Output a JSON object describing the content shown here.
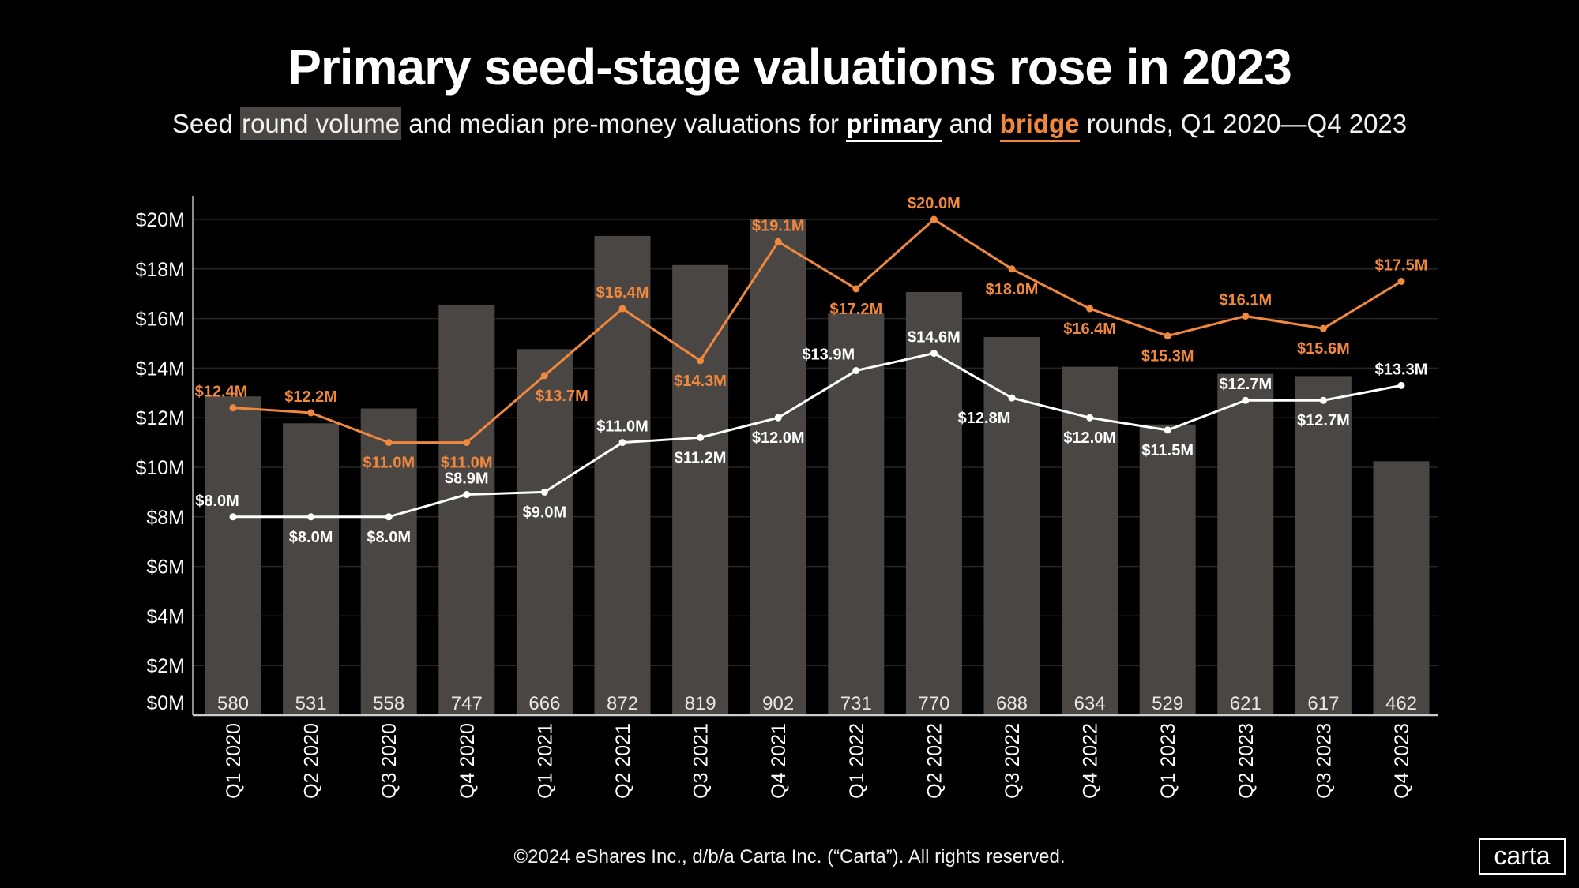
{
  "title": "Primary seed-stage valuations rose in 2023",
  "subtitle": {
    "part1": "Seed",
    "highlight": "round volume",
    "part2": "and median pre-money valuations for",
    "primary": "primary",
    "part3": "and",
    "bridge": "bridge",
    "part4": "rounds, Q1 2020—Q4 2023"
  },
  "footer": "©2024 eShares Inc., d/b/a Carta Inc. (“Carta”). All rights reserved.",
  "logo": "carta",
  "colors": {
    "background": "#000000",
    "bars": "#4a4644",
    "primary": "#ffffff",
    "bridge": "#f0883e",
    "grid": "#262626"
  },
  "chart_data": {
    "type": "bar+line",
    "categories": [
      "Q1 2020",
      "Q2 2020",
      "Q3 2020",
      "Q4 2020",
      "Q1 2021",
      "Q2 2021",
      "Q3 2021",
      "Q4 2021",
      "Q1 2022",
      "Q2 2022",
      "Q3 2022",
      "Q4 2022",
      "Q1 2023",
      "Q2 2023",
      "Q3 2023",
      "Q4 2023"
    ],
    "yticks": [
      "$0M",
      "$2M",
      "$4M",
      "$6M",
      "$8M",
      "$10M",
      "$12M",
      "$14M",
      "$16M",
      "$18M",
      "$20M"
    ],
    "ylim": [
      0,
      20
    ],
    "grid": true,
    "volume": [
      580,
      531,
      558,
      747,
      666,
      872,
      819,
      902,
      731,
      770,
      688,
      634,
      529,
      621,
      617,
      462
    ],
    "series": [
      {
        "name": "primary",
        "values": [
          8.0,
          8.0,
          8.0,
          8.9,
          9.0,
          11.0,
          11.2,
          12.0,
          13.9,
          14.6,
          12.8,
          12.0,
          11.5,
          12.7,
          12.7,
          13.3
        ],
        "labels": [
          "$8.0M",
          "$8.0M",
          "$8.0M",
          "$8.9M",
          "$9.0M",
          "$11.0M",
          "$11.2M",
          "$12.0M",
          "$13.9M",
          "$14.6M",
          "$12.8M",
          "$12.0M",
          "$11.5M",
          "$12.7M",
          "$12.7M",
          "$13.3M"
        ]
      },
      {
        "name": "bridge",
        "values": [
          12.4,
          12.2,
          11.0,
          11.0,
          13.7,
          16.4,
          14.3,
          19.1,
          17.2,
          20.0,
          18.0,
          16.4,
          15.3,
          16.1,
          15.6,
          17.5
        ],
        "labels": [
          "$12.4M",
          "$12.2M",
          "$11.0M",
          "$11.0M",
          "$13.7M",
          "$16.4M",
          "$14.3M",
          "$19.1M",
          "$17.2M",
          "$20.0M",
          "$18.0M",
          "$16.4M",
          "$15.3M",
          "$16.1M",
          "$15.6M",
          "$17.5M"
        ]
      }
    ]
  }
}
